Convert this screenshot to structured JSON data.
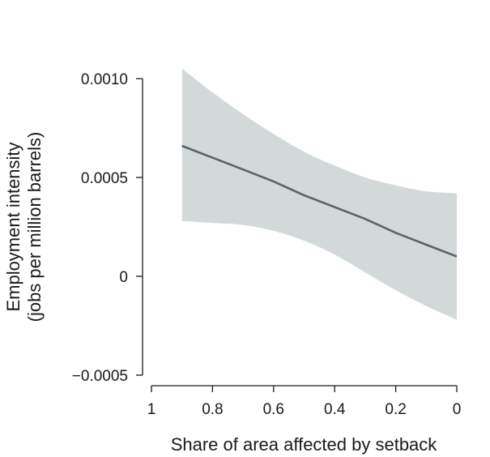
{
  "chart_data": {
    "type": "line",
    "xlabel": "Share of area affected by setback",
    "ylabel": [
      "Employment intensity",
      "(jobs per million barrels)"
    ],
    "xlim": [
      1,
      0
    ],
    "ylim": [
      -0.0005,
      0.001
    ],
    "x_reversed": true,
    "xticks": [
      {
        "value": 1,
        "label": "1"
      },
      {
        "value": 0.8,
        "label": "0.8"
      },
      {
        "value": 0.6,
        "label": "0.6"
      },
      {
        "value": 0.4,
        "label": "0.4"
      },
      {
        "value": 0.2,
        "label": "0.2"
      },
      {
        "value": 0,
        "label": "0"
      }
    ],
    "yticks": [
      {
        "value": 0.001,
        "label": "0.0010"
      },
      {
        "value": 0.0005,
        "label": "0.0005"
      },
      {
        "value": 0,
        "label": "0"
      },
      {
        "value": -0.0005,
        "label": "−0.0005"
      }
    ],
    "grid": false,
    "series": [
      {
        "x": [
          0.9,
          0.8,
          0.7,
          0.6,
          0.5,
          0.4,
          0.3,
          0.2,
          0.1,
          0.0
        ],
        "values": [
          0.00066,
          0.0006,
          0.00054,
          0.00048,
          0.00041,
          0.00035,
          0.00029,
          0.00022,
          0.00016,
          0.0001
        ],
        "lower": [
          0.00028,
          0.00027,
          0.00026,
          0.00023,
          0.00018,
          0.00011,
          2e-05,
          -7e-05,
          -0.00015,
          -0.00022
        ],
        "upper": [
          0.00105,
          0.00093,
          0.00082,
          0.00072,
          0.00063,
          0.00056,
          0.0005,
          0.00046,
          0.00043,
          0.00042
        ],
        "color": "#56656a",
        "band_color": "#d3d9d9"
      }
    ]
  }
}
